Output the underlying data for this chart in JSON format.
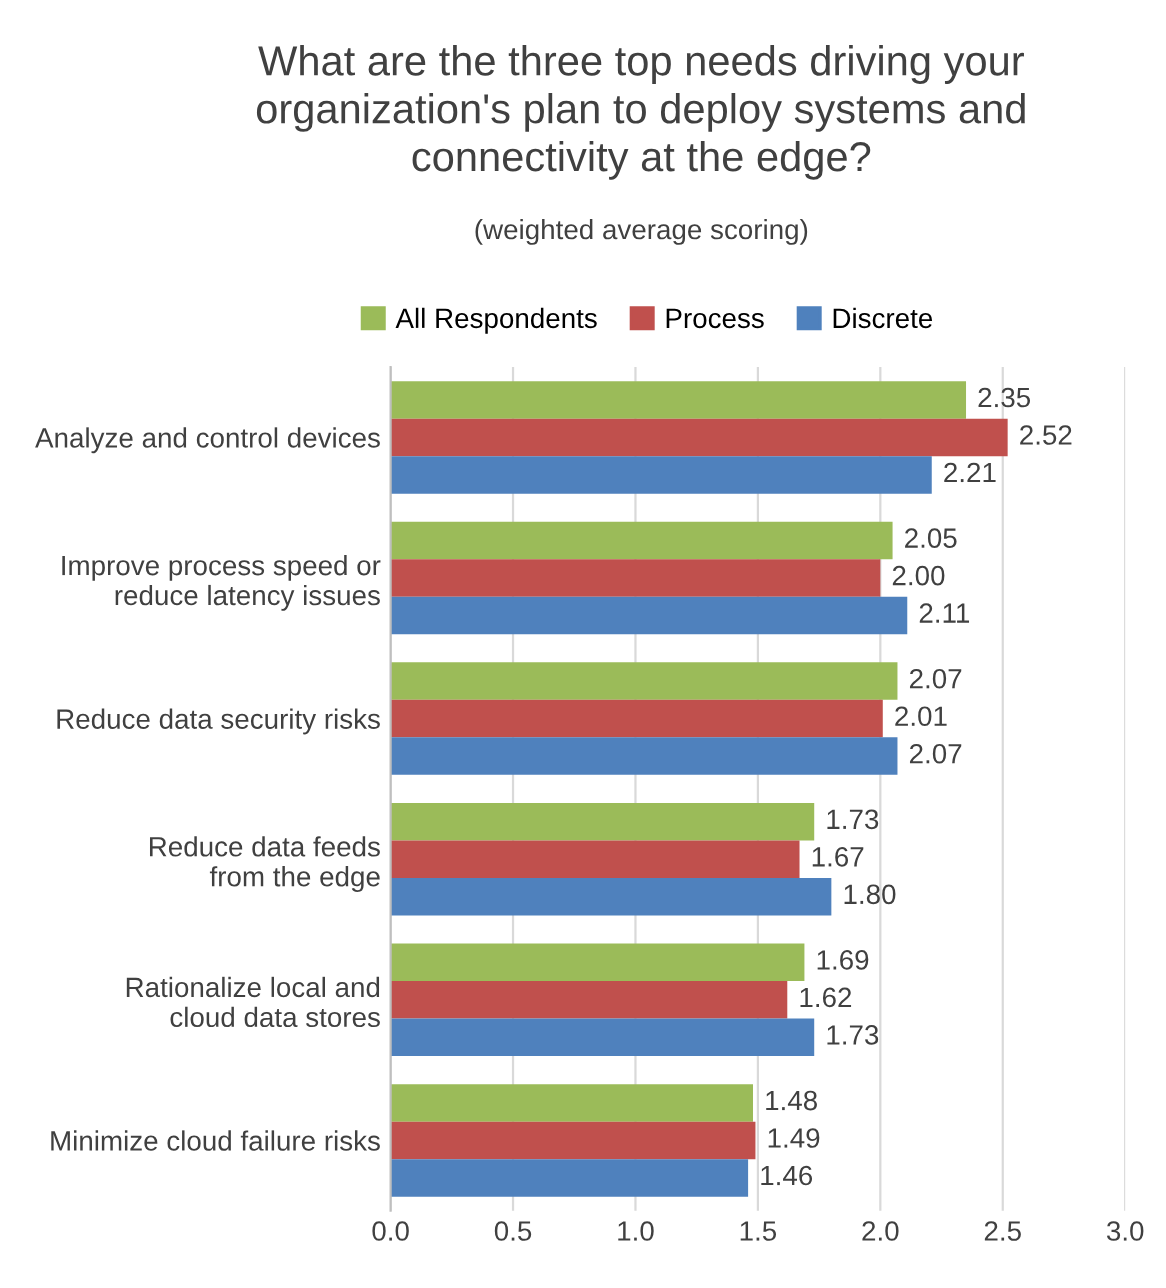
{
  "chart_data": {
    "type": "bar",
    "orientation": "horizontal",
    "title": "What are the three top needs driving your\norganization's plan to deploy systems and\nconnectivity at the edge?",
    "subtitle": "(weighted average scoring)",
    "categories": [
      "Analyze and control devices",
      "Improve process speed or\nreduce latency issues",
      "Reduce data security risks",
      "Reduce data feeds\nfrom the edge",
      "Rationalize local and\ncloud data stores",
      "Minimize cloud failure risks"
    ],
    "series": [
      {
        "name": "All Respondents",
        "color": "#9bbb59",
        "values": [
          2.35,
          2.05,
          2.07,
          1.73,
          1.69,
          1.48
        ],
        "value_labels": [
          "2.35",
          "2.05",
          "2.07",
          "1.73",
          "1.69",
          "1.48"
        ]
      },
      {
        "name": "Process",
        "color": "#c0504d",
        "values": [
          2.52,
          2.0,
          2.01,
          1.67,
          1.62,
          1.49
        ],
        "value_labels": [
          "2.52",
          "2.00",
          "2.01",
          "1.67",
          "1.62",
          "1.49"
        ]
      },
      {
        "name": "Discrete",
        "color": "#4f81bd",
        "values": [
          2.21,
          2.11,
          2.07,
          1.8,
          1.73,
          1.46
        ],
        "value_labels": [
          "2.21",
          "2.11",
          "2.07",
          "1.80",
          "1.73",
          "1.46"
        ]
      }
    ],
    "xlim": [
      0,
      3
    ],
    "xticks": [
      {
        "value": 0,
        "label": "0.0"
      },
      {
        "value": 0.5,
        "label": "0.5"
      },
      {
        "value": 1,
        "label": "1.0"
      },
      {
        "value": 1.5,
        "label": "1.5"
      },
      {
        "value": 2,
        "label": "2.0"
      },
      {
        "value": 2.5,
        "label": "2.5"
      },
      {
        "value": 3,
        "label": "3.0"
      }
    ],
    "grid": "x",
    "legend": "top"
  }
}
